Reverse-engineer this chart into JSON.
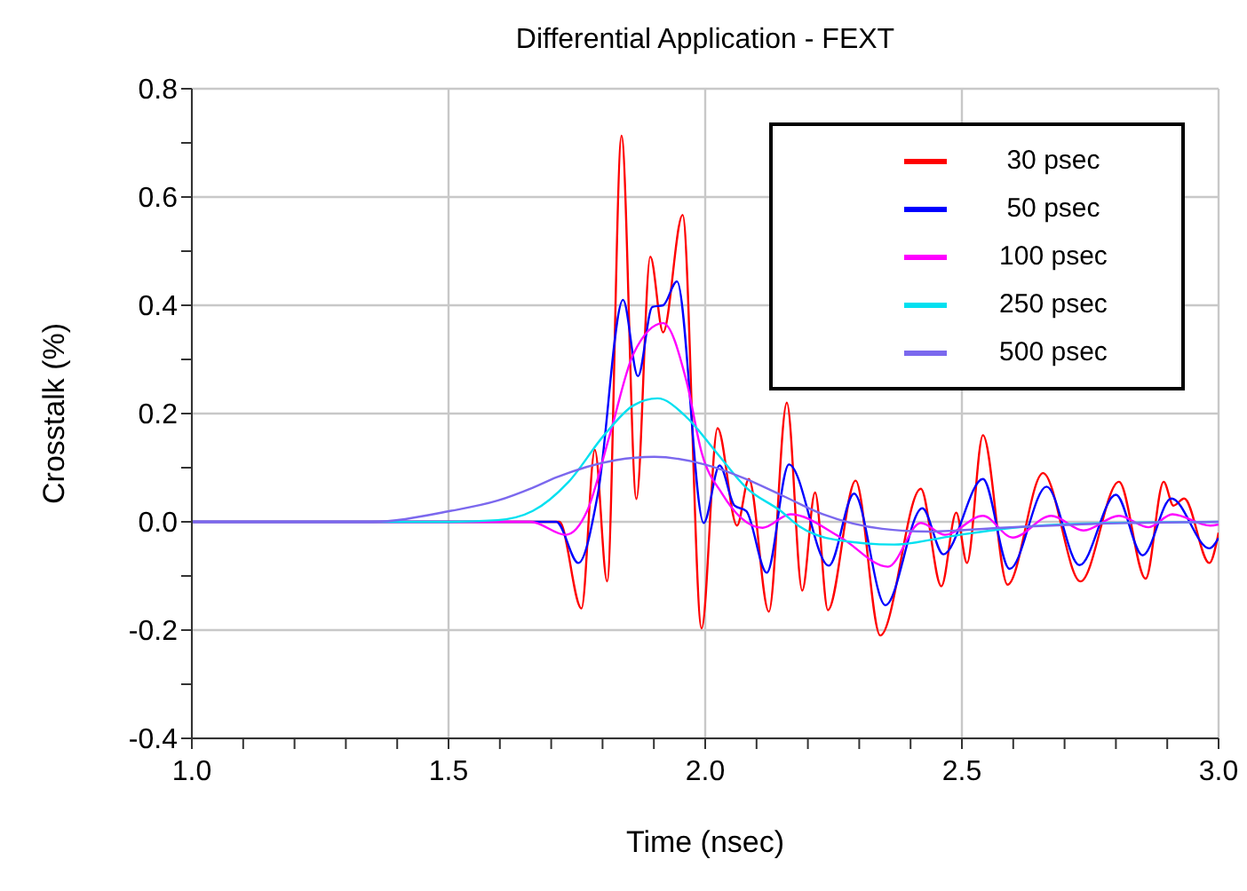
{
  "chart_data": {
    "type": "line",
    "title": "Differential Application - FEXT",
    "xlabel": "Time (nsec)",
    "ylabel": "Crosstalk (%)",
    "xlim": [
      1,
      3
    ],
    "ylim": [
      -0.4,
      0.8
    ],
    "xticks": [
      {
        "value": 1,
        "label": "1.0"
      },
      {
        "value": 1.1,
        "label": null
      },
      {
        "value": 1.2,
        "label": null
      },
      {
        "value": 1.3,
        "label": null
      },
      {
        "value": 1.4,
        "label": null
      },
      {
        "value": 1.5,
        "label": "1.5"
      },
      {
        "value": 1.6,
        "label": null
      },
      {
        "value": 1.7,
        "label": null
      },
      {
        "value": 1.8,
        "label": null
      },
      {
        "value": 1.9,
        "label": null
      },
      {
        "value": 2,
        "label": "2.0"
      },
      {
        "value": 2.1,
        "label": null
      },
      {
        "value": 2.2,
        "label": null
      },
      {
        "value": 2.3,
        "label": null
      },
      {
        "value": 2.4,
        "label": null
      },
      {
        "value": 2.5,
        "label": "2.5"
      },
      {
        "value": 2.6,
        "label": null
      },
      {
        "value": 2.7,
        "label": null
      },
      {
        "value": 2.8,
        "label": null
      },
      {
        "value": 2.9,
        "label": null
      },
      {
        "value": 3,
        "label": "3.0"
      }
    ],
    "yticks": [
      {
        "value": -0.4,
        "label": "-0.4"
      },
      {
        "value": -0.3,
        "label": null
      },
      {
        "value": -0.2,
        "label": "-0.2"
      },
      {
        "value": -0.1,
        "label": null
      },
      {
        "value": 0,
        "label": "0.0"
      },
      {
        "value": 0.1,
        "label": null
      },
      {
        "value": 0.2,
        "label": "0.2"
      },
      {
        "value": 0.3,
        "label": null
      },
      {
        "value": 0.4,
        "label": "0.4"
      },
      {
        "value": 0.5,
        "label": null
      },
      {
        "value": 0.6,
        "label": "0.6"
      },
      {
        "value": 0.7,
        "label": null
      },
      {
        "value": 0.8,
        "label": "0.8"
      }
    ],
    "grid": true,
    "legend": "top right",
    "series": [
      {
        "name": "30 psec",
        "color": "#ff0000",
        "x": [
          1,
          1.5,
          1.716,
          1.759,
          1.785,
          1.809,
          1.837,
          1.866,
          1.893,
          1.918,
          1.956,
          1.993,
          2.024,
          2.062,
          2.085,
          2.124,
          2.159,
          2.189,
          2.214,
          2.239,
          2.293,
          2.341,
          2.42,
          2.46,
          2.489,
          2.51,
          2.541,
          2.589,
          2.658,
          2.731,
          2.806,
          2.858,
          2.893,
          2.912,
          2.933,
          2.982,
          3
        ],
        "values": [
          0,
          0,
          0,
          -0.16,
          0.133,
          -0.11,
          0.713,
          0.042,
          0.49,
          0.35,
          0.567,
          -0.197,
          0.173,
          -0.007,
          0.079,
          -0.166,
          0.22,
          -0.127,
          0.054,
          -0.163,
          0.076,
          -0.21,
          0.061,
          -0.119,
          0.017,
          -0.076,
          0.16,
          -0.116,
          0.09,
          -0.11,
          0.074,
          -0.105,
          0.074,
          0.03,
          0.043,
          -0.076,
          -0.02
        ]
      },
      {
        "name": "50 psec",
        "color": "#0000ff",
        "x": [
          1,
          1.5,
          1.71,
          1.753,
          1.791,
          1.84,
          1.869,
          1.897,
          1.918,
          1.945,
          1.997,
          2.028,
          2.057,
          2.08,
          2.12,
          2.163,
          2.241,
          2.29,
          2.351,
          2.423,
          2.464,
          2.541,
          2.593,
          2.665,
          2.729,
          2.8,
          2.852,
          2.908,
          2.982,
          3
        ],
        "values": [
          0,
          0,
          0,
          -0.076,
          0.052,
          0.41,
          0.269,
          0.397,
          0.4,
          0.444,
          -0.002,
          0.104,
          0.03,
          0.02,
          -0.094,
          0.106,
          -0.081,
          0.052,
          -0.154,
          0.025,
          -0.06,
          0.079,
          -0.087,
          0.065,
          -0.08,
          0.05,
          -0.062,
          0.043,
          -0.049,
          -0.03
        ]
      },
      {
        "name": "100 psec",
        "color": "#ff00ff",
        "x": [
          1,
          1.5,
          1.66,
          1.728,
          1.77,
          1.814,
          1.86,
          1.918,
          1.964,
          1.993,
          2.033,
          2.068,
          2.112,
          2.166,
          2.264,
          2.356,
          2.42,
          2.467,
          2.541,
          2.599,
          2.674,
          2.737,
          2.806,
          2.864,
          2.91,
          2.984,
          3
        ],
        "values": [
          0,
          0,
          0,
          -0.024,
          0.02,
          0.16,
          0.31,
          0.367,
          0.258,
          0.128,
          0.052,
          0.009,
          -0.011,
          0.014,
          -0.029,
          -0.083,
          -0.002,
          -0.024,
          0.011,
          -0.029,
          0.011,
          -0.016,
          0.011,
          -0.01,
          0.014,
          -0.007,
          -0.005
        ]
      },
      {
        "name": "250 psec",
        "color": "#00e0f0",
        "x": [
          1,
          1.5,
          1.595,
          1.664,
          1.734,
          1.803,
          1.86,
          1.907,
          1.964,
          2.022,
          2.08,
          2.147,
          2.183,
          2.253,
          2.368,
          2.483,
          2.599,
          2.74,
          3
        ],
        "values": [
          0,
          0,
          0.003,
          0.02,
          0.074,
          0.16,
          0.215,
          0.228,
          0.193,
          0.128,
          0.063,
          0.02,
          -0.008,
          -0.033,
          -0.042,
          -0.026,
          -0.011,
          -0.003,
          0
        ]
      },
      {
        "name": "500 psec",
        "color": "#7b68ee",
        "x": [
          1,
          1.35,
          1.503,
          1.595,
          1.664,
          1.71,
          1.826,
          1.901,
          1.999,
          2.08,
          2.147,
          2.229,
          2.345,
          2.438,
          2.576,
          2.75,
          3
        ],
        "values": [
          0,
          0,
          0.02,
          0.039,
          0.063,
          0.082,
          0.114,
          0.12,
          0.106,
          0.079,
          0.05,
          0.014,
          -0.013,
          -0.018,
          -0.011,
          -0.004,
          0
        ]
      }
    ]
  }
}
